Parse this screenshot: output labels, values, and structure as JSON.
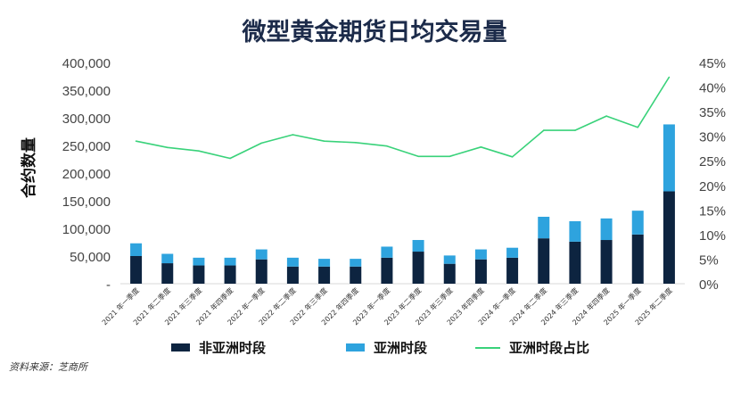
{
  "chart_data": {
    "type": "bar",
    "title": "微型黄金期货日均交易量",
    "ylabel": "合约数量",
    "ylabel_right": "",
    "ylim": [
      0,
      400000
    ],
    "ylim_right": [
      0,
      45
    ],
    "left_ticks": [
      "-",
      "50,000",
      "100,000",
      "150,000",
      "200,000",
      "250,000",
      "300,000",
      "350,000",
      "400,000"
    ],
    "right_ticks": [
      "0%",
      "5%",
      "10%",
      "15%",
      "20%",
      "25%",
      "30%",
      "35%",
      "40%",
      "45%"
    ],
    "stacked": true,
    "grid": false,
    "legend_position": "bottom",
    "categories": [
      "2021 年一季度",
      "2021 年二季度",
      "2021 年三季度",
      "2021 年四季度",
      "2022 年一季度",
      "2022 年二季度",
      "2022 年三季度",
      "2022 年四季度",
      "2023 年一季度",
      "2023 年二季度",
      "2023 年三季度",
      "2023 年四季度",
      "2024 年一季度",
      "2024 年二季度",
      "2024 年三季度",
      "2024 年四季度",
      "2025 年一季度",
      "2025 年二季度"
    ],
    "series": [
      {
        "name": "非亚洲时段",
        "type": "bar",
        "axis": "left",
        "color": "#0d2440",
        "values": [
          50000,
          37000,
          33000,
          33000,
          44000,
          31000,
          31000,
          31000,
          47000,
          58000,
          36000,
          44000,
          47000,
          82000,
          76000,
          79000,
          89000,
          167000
        ]
      },
      {
        "name": "亚洲时段",
        "type": "bar",
        "axis": "left",
        "color": "#2ea3de",
        "values": [
          23000,
          17000,
          14000,
          14000,
          18000,
          16000,
          14000,
          14000,
          20000,
          21000,
          15000,
          18000,
          18000,
          39000,
          37000,
          39000,
          43000,
          121000
        ]
      },
      {
        "name": "亚洲时段占比",
        "type": "line",
        "axis": "right",
        "color": "#39d27a",
        "values": [
          29,
          27.7,
          27,
          25.5,
          28.6,
          30.3,
          29,
          28.7,
          28,
          25.9,
          25.9,
          27.8,
          25.8,
          31.2,
          31.2,
          34.1,
          31.8,
          42
        ]
      }
    ]
  },
  "source_note": "资料来源：芝商所"
}
